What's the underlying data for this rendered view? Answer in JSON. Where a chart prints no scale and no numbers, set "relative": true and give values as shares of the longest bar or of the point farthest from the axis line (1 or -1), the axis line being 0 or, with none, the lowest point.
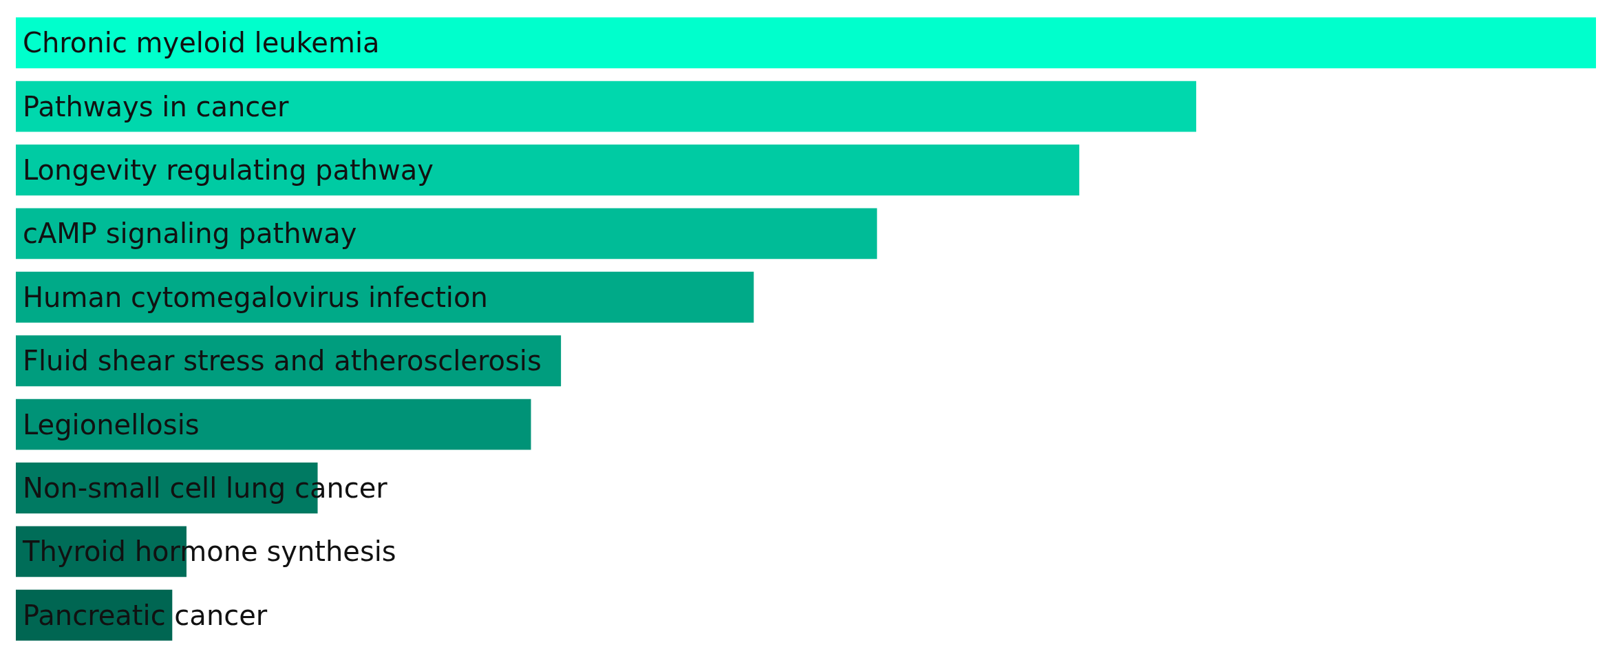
{
  "chart_data": {
    "type": "bar",
    "orientation": "horizontal",
    "relative": true,
    "categories": [
      "Chronic myeloid leukemia",
      "Pathways in cancer",
      "Longevity regulating pathway",
      "cAMP signaling pathway",
      "Human cytomegalovirus infection",
      "Fluid shear stress and atherosclerosis",
      "Legionellosis",
      "Non-small cell lung cancer",
      "Thyroid hormone synthesis",
      "Pancreatic cancer"
    ],
    "values": [
      1,
      0.747,
      0.673,
      0.545,
      0.467,
      0.345,
      0.326,
      0.191,
      0.108,
      0.099
    ],
    "colors": [
      "#00ffcc",
      "#00d8ad",
      "#00cba3",
      "#00bc97",
      "#00aa88",
      "#009d7e",
      "#009377",
      "#007a62",
      "#006d58",
      "#006652"
    ]
  }
}
